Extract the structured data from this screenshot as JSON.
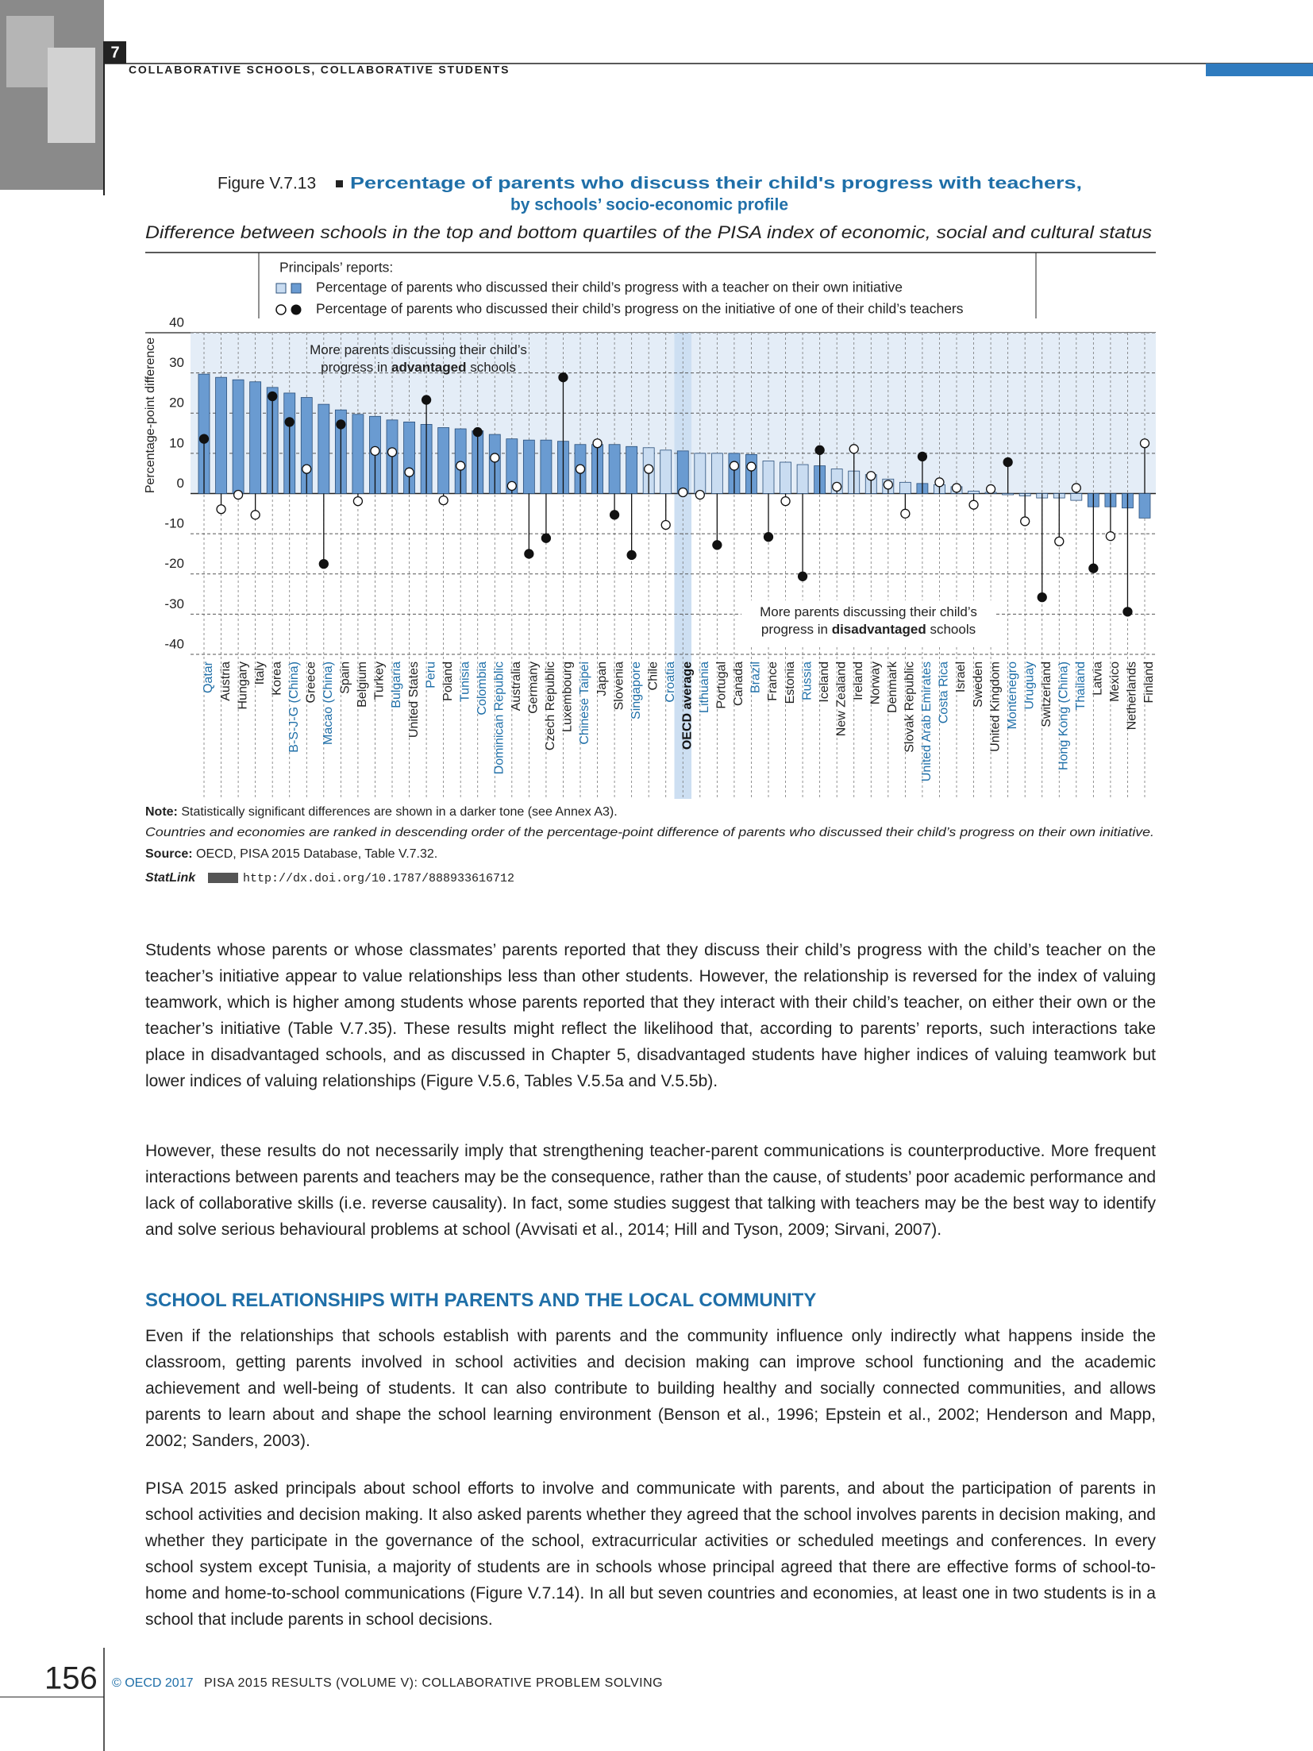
{
  "header": {
    "chapter": "7",
    "running_title": "COLLABORATIVE SCHOOLS, COLLABORATIVE STUDENTS"
  },
  "figure": {
    "number": "Figure V.7.13",
    "title_line1": "Percentage of parents who discuss their child's progress with teachers,",
    "title_line2": "by schools’ socio-economic profile",
    "subtitle": "Difference between schools in the top and bottom quartiles of the PISA index of economic, social and cultural status",
    "note_label": "Note:",
    "note_text": "Statistically significant differences are shown in a darker tone (see Annex A3).",
    "ranking_note": "Countries and economies are ranked in descending order of the percentage-point difference of parents who discussed their child’s progress on their own initiative.",
    "source_label": "Source:",
    "source_text": "OECD, PISA 2015 Database, Table V.7.32.",
    "statlink_label": "StatLink",
    "statlink_url": "http://dx.doi.org/10.1787/888933616712"
  },
  "chart_data": {
    "type": "bar",
    "legend_title": "Principals’ reports:",
    "y_label": "Percentage-point difference",
    "ylim": [
      -40,
      40
    ],
    "yticks": [
      -40,
      -30,
      -20,
      -10,
      0,
      10,
      20,
      30,
      40
    ],
    "grid": true,
    "shade_color": "#e4edf7",
    "highlight_color": "#cddff2",
    "highlight_index": 28,
    "categories": [
      "Qatar",
      "Austria",
      "Hungary",
      "Italy",
      "Korea",
      "B-S-J-G (China)",
      "Greece",
      "Macao (China)",
      "Spain",
      "Belgium",
      "Turkey",
      "Bulgaria",
      "United States",
      "Peru",
      "Poland",
      "Tunisia",
      "Colombia",
      "Dominican Republic",
      "Australia",
      "Germany",
      "Czech Republic",
      "Luxembourg",
      "Chinese Taipei",
      "Japan",
      "Slovenia",
      "Singapore",
      "Chile",
      "Croatia",
      "OECD average",
      "Lithuania",
      "Portugal",
      "Canada",
      "Brazil",
      "France",
      "Estonia",
      "Russia",
      "Iceland",
      "New Zealand",
      "Ireland",
      "Norway",
      "Denmark",
      "Slovak Republic",
      "United Arab Emirates",
      "Costa Rica",
      "Israel",
      "Sweden",
      "United Kingdom",
      "Montenegro",
      "Uruguay",
      "Switzerland",
      "Hong Kong (China)",
      "Thailand",
      "Latvia",
      "Mexico",
      "Netherlands",
      "Finland"
    ],
    "category_label_colors": [
      "#1f6fa8",
      "#222",
      "#222",
      "#222",
      "#222",
      "#1f6fa8",
      "#222",
      "#1f6fa8",
      "#222",
      "#222",
      "#222",
      "#1f6fa8",
      "#222",
      "#1f6fa8",
      "#222",
      "#1f6fa8",
      "#1f6fa8",
      "#1f6fa8",
      "#222",
      "#222",
      "#222",
      "#222",
      "#1f6fa8",
      "#222",
      "#222",
      "#1f6fa8",
      "#222",
      "#1f6fa8",
      "#111",
      "#1f6fa8",
      "#222",
      "#222",
      "#1f6fa8",
      "#222",
      "#222",
      "#1f6fa8",
      "#222",
      "#222",
      "#222",
      "#222",
      "#222",
      "#222",
      "#1f6fa8",
      "#1f6fa8",
      "#222",
      "#222",
      "#222",
      "#1f6fa8",
      "#1f6fa8",
      "#222",
      "#1f6fa8",
      "#1f6fa8",
      "#222",
      "#222",
      "#222",
      "#222"
    ],
    "series": [
      {
        "name": "Percentage of parents who discussed their child’s progress with a teacher on their own initiative",
        "marker": "bar",
        "color": "#6a9bd1",
        "light_color": "#c9dcf1",
        "stroke": "#2a4f7a",
        "values": [
          29.7,
          28.9,
          28.3,
          27.8,
          26.4,
          25,
          23.9,
          22.2,
          20.8,
          19.7,
          19.2,
          18.3,
          17.8,
          17.2,
          16.4,
          16.1,
          15.6,
          14.7,
          13.6,
          13.3,
          13.3,
          13,
          12.2,
          12.2,
          12.2,
          11.7,
          11.4,
          10.8,
          10.6,
          10,
          10,
          10,
          9.7,
          8.1,
          7.8,
          7.2,
          6.9,
          6.1,
          5.6,
          4.7,
          3.6,
          2.8,
          2.5,
          2.2,
          1.7,
          0.6,
          0.3,
          -0.3,
          -0.6,
          -1.1,
          -1.1,
          -1.7,
          -3.3,
          -3.3,
          -3.6,
          -6.1
        ],
        "significant": [
          true,
          true,
          true,
          true,
          true,
          true,
          true,
          true,
          true,
          true,
          true,
          true,
          true,
          true,
          true,
          true,
          true,
          true,
          true,
          true,
          true,
          true,
          true,
          true,
          true,
          true,
          false,
          false,
          true,
          false,
          false,
          true,
          true,
          false,
          false,
          false,
          true,
          false,
          false,
          false,
          false,
          false,
          true,
          false,
          false,
          false,
          false,
          false,
          false,
          false,
          false,
          false,
          true,
          true,
          true,
          true
        ]
      },
      {
        "name": "Percentage of parents who discussed their child’s progress on the initiative of one of their child’s teachers",
        "marker": "dot",
        "color": "#111111",
        "light_color": "#ffffff",
        "values": [
          13.6,
          -3.9,
          -0.3,
          -5.3,
          24.2,
          17.8,
          6.1,
          -17.5,
          17.2,
          -1.9,
          10.6,
          10.3,
          5.3,
          23.3,
          -1.7,
          6.9,
          15.3,
          8.9,
          1.9,
          -15,
          -11.1,
          28.9,
          6.1,
          12.5,
          -5.3,
          -15.3,
          6.1,
          -7.8,
          0.3,
          -0.3,
          -12.8,
          6.9,
          6.7,
          -10.8,
          -1.9,
          -20.6,
          10.8,
          1.7,
          11.1,
          4.4,
          2.2,
          -5,
          9.2,
          2.8,
          1.4,
          -2.8,
          1.1,
          7.8,
          -6.9,
          -25.8,
          -11.9,
          1.4,
          -18.6,
          -10.6,
          -29.4,
          12.5
        ],
        "significant": [
          true,
          false,
          false,
          false,
          true,
          true,
          false,
          true,
          true,
          false,
          false,
          false,
          false,
          true,
          false,
          false,
          true,
          false,
          false,
          true,
          true,
          true,
          false,
          false,
          true,
          true,
          false,
          false,
          false,
          false,
          true,
          false,
          false,
          true,
          false,
          true,
          true,
          false,
          false,
          false,
          false,
          false,
          true,
          false,
          false,
          false,
          false,
          true,
          false,
          true,
          false,
          false,
          true,
          false,
          true,
          false
        ]
      }
    ],
    "annotations": [
      {
        "lines": [
          [
            {
              "text": "More parents discussing their child’s"
            }
          ],
          [
            {
              "text": "progress in "
            },
            {
              "text": "advantaged",
              "bold": true
            },
            {
              "text": " schools"
            }
          ]
        ]
      },
      {
        "lines": [
          [
            {
              "text": "More parents discussing their child’s"
            }
          ],
          [
            {
              "text": "progress in "
            },
            {
              "text": "disadvantaged",
              "bold": true
            },
            {
              "text": " schools"
            }
          ]
        ]
      }
    ]
  },
  "body": {
    "paragraphs": [
      "Students whose parents or whose classmates’ parents reported that they discuss their child’s progress with the child’s teacher on the teacher’s initiative appear to value relationships less than other students. However, the relationship is reversed for the index of valuing teamwork, which is higher among students whose parents reported that they interact with their child’s teacher, on either their own or the teacher’s initiative (Table V.7.35). These results might reflect the likelihood that, according to parents’ reports, such interactions take place in disadvantaged schools, and as discussed in Chapter 5, disadvantaged students have higher indices of valuing teamwork but lower indices of valuing relationships (Figure V.5.6, Tables V.5.5a and V.5.5b).",
      "However, these results do not necessarily imply that strengthening teacher-parent communications is counterproductive. More frequent interactions between parents and teachers may be the consequence, rather than the cause, of students’ poor academic performance and lack of collaborative skills (i.e. reverse causality). In fact, some studies suggest that talking with teachers may be the best way to identify and solve serious behavioural problems at school (Avvisati et al., 2014; Hill and Tyson, 2009; Sirvani, 2007).",
      "Even if the relationships that schools establish with parents and the community influence only indirectly what happens inside the classroom, getting parents involved in school activities and decision making can improve school functioning and the academic achievement and well-being of students. It can also contribute to building healthy and socially connected communities, and allows parents to learn about and shape the school learning environment (Benson et al., 1996; Epstein et al., 2002; Henderson and Mapp, 2002; Sanders, 2003).",
      "PISA 2015 asked principals about school efforts to involve and communicate with parents, and about the participation of parents in school activities and decision making. It also asked parents whether they agreed that the school involves parents in decision making, and whether they participate in the governance of the school, extracurricular activities or scheduled meetings and conferences. In every school system except Tunisia, a majority of students are in schools whose principal agreed that there are effective forms of school-to-home and home-to-school communications (Figure V.7.14). In all but seven countries and economies, at least one in two students is in a school that include parents in school decisions."
    ],
    "heading": "SCHOOL RELATIONSHIPS WITH PARENTS AND THE LOCAL COMMUNITY"
  },
  "footer": {
    "page_number": "156",
    "copyright": "© OECD 2017",
    "publication": "PISA 2015 RESULTS (VOLUME V): COLLABORATIVE PROBLEM SOLVING"
  }
}
